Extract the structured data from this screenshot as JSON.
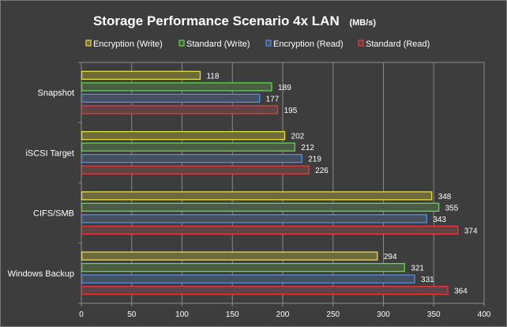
{
  "chart_data": {
    "type": "bar",
    "orientation": "horizontal",
    "title": "Storage  Performance Scenario 4x LAN",
    "title_unit": "(MB/s)",
    "categories": [
      "Snapshot",
      "iSCSI Target",
      "CIFS/SMB",
      "Windows Backup"
    ],
    "series": [
      {
        "name": "Encryption (Write)",
        "color": "#e8dd3a",
        "fill": "#6e6a3c",
        "values": [
          118,
          202,
          348,
          294
        ]
      },
      {
        "name": "Standard (Write)",
        "color": "#5fd84a",
        "fill": "#4a5c44",
        "values": [
          189,
          212,
          355,
          321
        ]
      },
      {
        "name": "Encryption (Read)",
        "color": "#4a90e8",
        "fill": "#454f5e",
        "values": [
          177,
          219,
          343,
          331
        ]
      },
      {
        "name": "Standard (Read)",
        "color": "#e83a3a",
        "fill": "#5e4444",
        "values": [
          195,
          226,
          374,
          364
        ]
      }
    ],
    "xlim": [
      0,
      400
    ],
    "xticks": [
      "0",
      "50",
      "100",
      "150",
      "200",
      "250",
      "300",
      "350",
      "400"
    ],
    "grid": true,
    "legend_position": "top"
  }
}
